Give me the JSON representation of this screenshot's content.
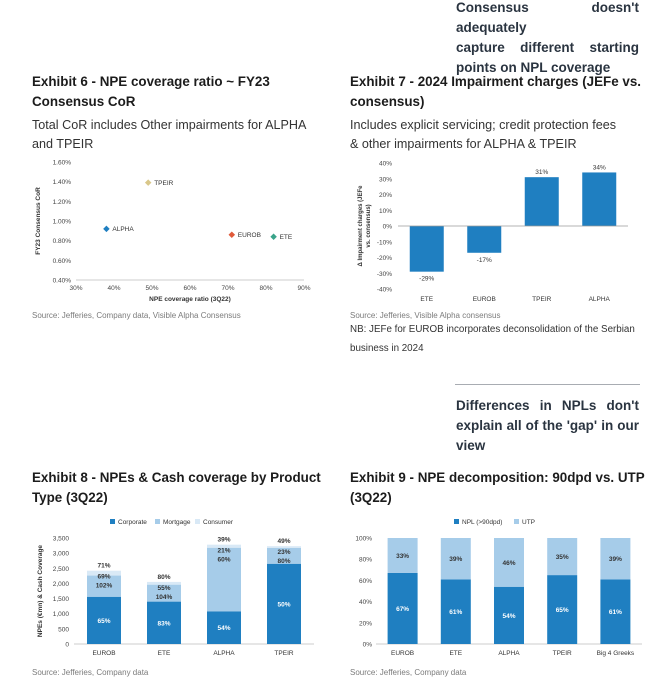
{
  "pull_quotes": {
    "top": "Consensus doesn't adequately capture different starting points on NPL coverage",
    "top_lines": [
      "Consensus doesn't adequately",
      "capture different starting",
      "points on NPL coverage"
    ],
    "middle": "Differences in NPLs don't explain all of the 'gap' in our view",
    "middle_lines": [
      "Differences in NPLs don't",
      "explain all of the 'gap' in our",
      "view"
    ]
  },
  "exhibit6": {
    "title_lines": [
      "Exhibit 6 - NPE coverage ratio ~ FY23",
      "Consensus CoR"
    ],
    "subtitle_lines": [
      "Total CoR includes Other impairments for ALPHA",
      "and TPEIR"
    ],
    "source": "Source: Jefferies, Company data, Visible Alpha Consensus"
  },
  "exhibit7": {
    "title_lines": [
      "Exhibit 7 - 2024 Impairment charges (JEFe vs.",
      "consensus)"
    ],
    "subtitle_lines": [
      "Includes explicit servicing; credit protection fees",
      "& other impairments for ALPHA & TPEIR"
    ],
    "source": "Source: Jefferies, Visible Alpha consensus",
    "note_lines": [
      "NB: JEFe for EUROB incorporates deconsolidation of the Serbian",
      "business in 2024"
    ]
  },
  "exhibit8": {
    "title_lines": [
      "Exhibit 8 - NPEs & Cash coverage by Product",
      "Type (3Q22)"
    ],
    "source": "Source: Jefferies, Company data"
  },
  "exhibit9": {
    "title_lines": [
      "Exhibit 9 - NPE decomposition: 90dpd vs. UTP",
      "(3Q22)"
    ],
    "source": "Source: Jefferies, Company data"
  },
  "colors": {
    "blue": "#1f7fc1",
    "light_blue": "#a6cce9",
    "pale_blue": "#d9e9f6",
    "tpeir_marker": "#d9c78a",
    "alpha_marker": "#1f7fc1",
    "eurob_marker": "#e05a3a",
    "ete_marker": "#3aa48a"
  },
  "chart_data": [
    {
      "id": "exhibit6",
      "type": "scatter",
      "xlabel": "NPE coverage ratio (3Q22)",
      "ylabel": "FY23 Consensus CoR",
      "xlim": [
        0.3,
        0.9
      ],
      "ylim": [
        0.004,
        0.016
      ],
      "xticks": [
        "30%",
        "40%",
        "50%",
        "60%",
        "70%",
        "80%",
        "90%"
      ],
      "yticks": [
        "0.40%",
        "0.60%",
        "0.80%",
        "1.00%",
        "1.20%",
        "1.40%",
        "1.60%"
      ],
      "points": [
        {
          "label": "TPEIR",
          "x": 0.49,
          "y": 0.0139,
          "color": "#d9c78a"
        },
        {
          "label": "ALPHA",
          "x": 0.38,
          "y": 0.0092,
          "color": "#1f7fc1"
        },
        {
          "label": "EUROB",
          "x": 0.71,
          "y": 0.0086,
          "color": "#e05a3a"
        },
        {
          "label": "ETE",
          "x": 0.82,
          "y": 0.0084,
          "color": "#3aa48a"
        }
      ]
    },
    {
      "id": "exhibit7",
      "type": "bar",
      "ylabel": "Δ Impairment charges (JEFe vs. consensus)",
      "ylim": [
        -40,
        40
      ],
      "yticks": [
        "40%",
        "30%",
        "20%",
        "10%",
        "0%",
        "-10%",
        "-20%",
        "-30%",
        "-40%"
      ],
      "categories": [
        "ETE",
        "EUROB",
        "TPEIR",
        "ALPHA"
      ],
      "values": [
        -29,
        -17,
        31,
        34
      ],
      "value_labels": [
        "-29%",
        "-17%",
        "31%",
        "34%"
      ]
    },
    {
      "id": "exhibit8",
      "type": "bar",
      "stacked": true,
      "ylabel": "NPEs (€mn) & Cash Coverage",
      "ylim": [
        0,
        3500
      ],
      "yticks": [
        "3,500",
        "3,000",
        "2,500",
        "2,000",
        "1,500",
        "1,000",
        "500",
        "0"
      ],
      "categories": [
        "EUROB",
        "ETE",
        "ALPHA",
        "TPEIR"
      ],
      "legend": [
        "Corporate",
        "Mortgage",
        "Consumer"
      ],
      "series": [
        {
          "name": "Corporate",
          "values": [
            1560,
            1400,
            1080,
            2650
          ]
        },
        {
          "name": "Mortgage",
          "values": [
            700,
            560,
            2100,
            520
          ]
        },
        {
          "name": "Consumer",
          "values": [
            160,
            90,
            100,
            60
          ]
        }
      ],
      "labels": [
        {
          "segment": [
            "65%",
            "69%",
            "102%",
            "71%"
          ]
        },
        {
          "segment": [
            "83%",
            "55%",
            "104%",
            "80%"
          ]
        },
        {
          "segment": [
            "54%",
            "21%",
            "60%",
            "39%"
          ]
        },
        {
          "segment": [
            "50%",
            "23%",
            "80%",
            "49%"
          ]
        }
      ]
    },
    {
      "id": "exhibit9",
      "type": "bar",
      "stacked": true,
      "ylim": [
        0,
        100
      ],
      "yticks": [
        "100%",
        "80%",
        "60%",
        "40%",
        "20%",
        "0%"
      ],
      "categories": [
        "EUROB",
        "ETE",
        "ALPHA",
        "TPEIR",
        "Big 4 Greeks"
      ],
      "legend": [
        "NPL (>90dpd)",
        "UTP"
      ],
      "series": [
        {
          "name": "NPL (>90dpd)",
          "values": [
            67,
            61,
            54,
            65,
            61
          ]
        },
        {
          "name": "UTP",
          "values": [
            33,
            39,
            46,
            35,
            39
          ]
        }
      ],
      "value_labels": {
        "npl": [
          "67%",
          "61%",
          "54%",
          "65%",
          "61%"
        ],
        "utp": [
          "33%",
          "39%",
          "46%",
          "35%",
          "39%"
        ]
      }
    }
  ]
}
